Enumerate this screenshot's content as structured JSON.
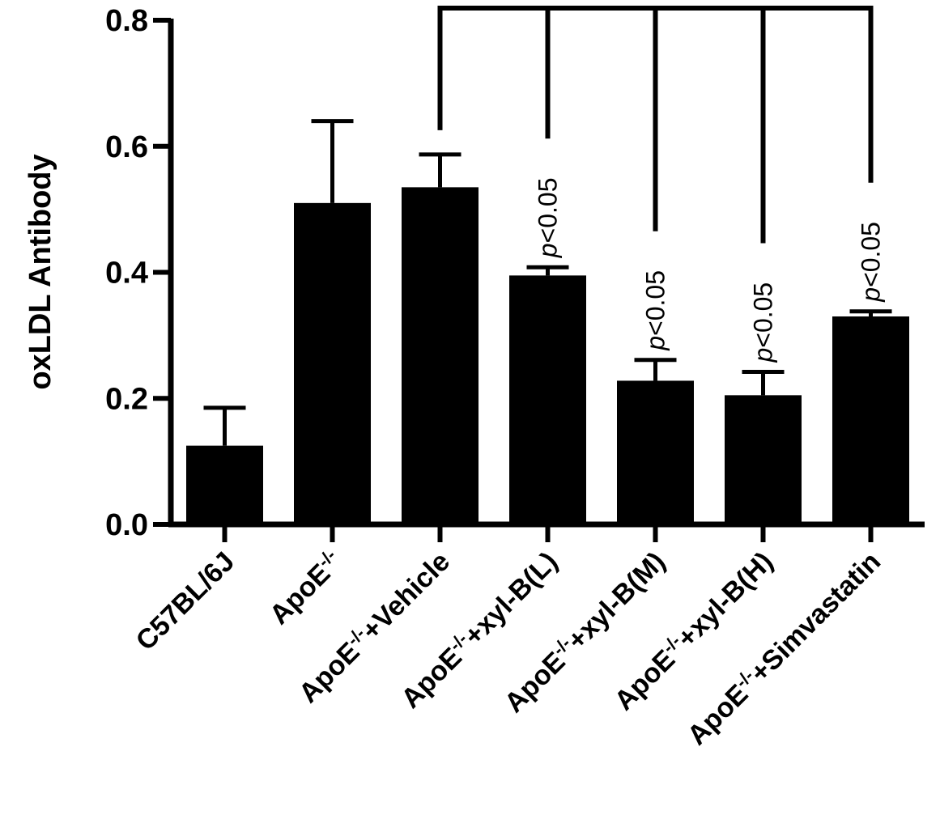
{
  "chart_data": {
    "type": "bar",
    "title": "",
    "xlabel": "",
    "ylabel": "oxLDL Antibody",
    "ylim": [
      0,
      0.8
    ],
    "yticks": [
      "0.0",
      "0.2",
      "0.4",
      "0.6",
      "0.8"
    ],
    "grid": false,
    "colors": {
      "bar": "#000000",
      "axis": "#000000",
      "background": "#ffffff"
    },
    "categories": [
      {
        "base": "C57BL/6J",
        "sup": "",
        "suffix": ""
      },
      {
        "base": "ApoE",
        "sup": "-/-",
        "suffix": ""
      },
      {
        "base": "ApoE",
        "sup": "-/-",
        "suffix": "+Vehicle"
      },
      {
        "base": "ApoE",
        "sup": "-/-",
        "suffix": "+xyl-B(L)"
      },
      {
        "base": "ApoE",
        "sup": "-/-",
        "suffix": "+xyl-B(M)"
      },
      {
        "base": "ApoE",
        "sup": "-/-",
        "suffix": "+xyl-B(H)"
      },
      {
        "base": "ApoE",
        "sup": "-/-",
        "suffix": "+Simvastatin"
      }
    ],
    "values": [
      0.125,
      0.51,
      0.535,
      0.395,
      0.228,
      0.205,
      0.33
    ],
    "errors": [
      0.06,
      0.13,
      0.052,
      0.013,
      0.033,
      0.037,
      0.008
    ],
    "comparisons": {
      "reference_index": 2,
      "targets": [
        {
          "index": 3,
          "p": "p",
          "text": "<0.05"
        },
        {
          "index": 4,
          "p": "p",
          "text": "<0.05"
        },
        {
          "index": 5,
          "p": "p",
          "text": "<0.05"
        },
        {
          "index": 6,
          "p": "p",
          "text": "<0.05"
        }
      ]
    }
  }
}
